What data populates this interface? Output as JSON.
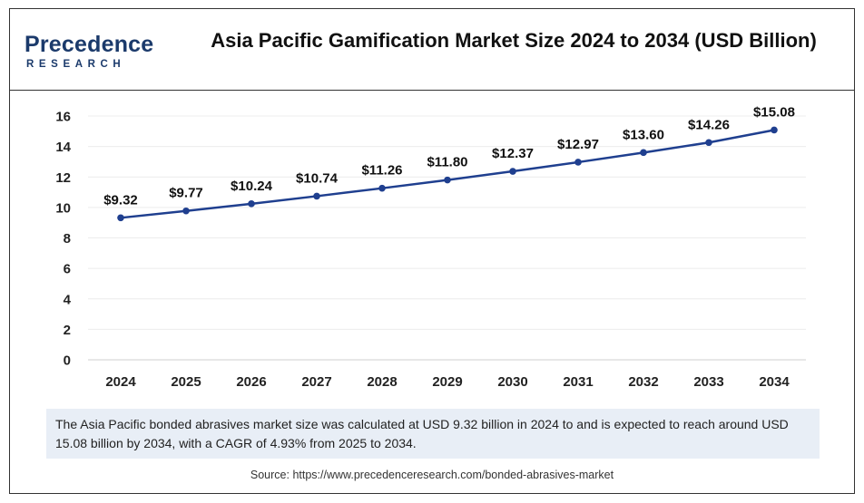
{
  "header": {
    "logo_main": "Precedence",
    "logo_sub": "RESEARCH",
    "title": "Asia Pacific Gamification Market Size 2024 to 2034 (USD Billion)"
  },
  "chart_data": {
    "type": "line",
    "title": "Asia Pacific Gamification Market Size 2024 to 2034 (USD Billion)",
    "categories": [
      "2024",
      "2025",
      "2026",
      "2027",
      "2028",
      "2029",
      "2030",
      "2031",
      "2032",
      "2033",
      "2034"
    ],
    "series": [
      {
        "values": [
          9.32,
          9.77,
          10.24,
          10.74,
          11.26,
          11.8,
          12.37,
          12.97,
          13.6,
          14.26,
          15.08
        ]
      }
    ],
    "data_labels": [
      "$9.32",
      "$9.77",
      "$10.24",
      "$10.74",
      "$11.26",
      "$11.80",
      "$12.37",
      "$12.97",
      "$13.60",
      "$14.26",
      "$15.08"
    ],
    "ylim": [
      0,
      16
    ],
    "yticks": [
      0,
      2,
      4,
      6,
      8,
      10,
      12,
      14,
      16
    ],
    "xlabel": "",
    "ylabel": "",
    "grid": true,
    "line_color": "#1f3f8f"
  },
  "note": "The Asia Pacific bonded abrasives market size was calculated at USD 9.32 billion in 2024 to and is expected to reach around USD 15.08 billion by 2034, with a CAGR of 4.93% from 2025 to 2034.",
  "source": "Source: https://www.precedenceresearch.com/bonded-abrasives-market"
}
